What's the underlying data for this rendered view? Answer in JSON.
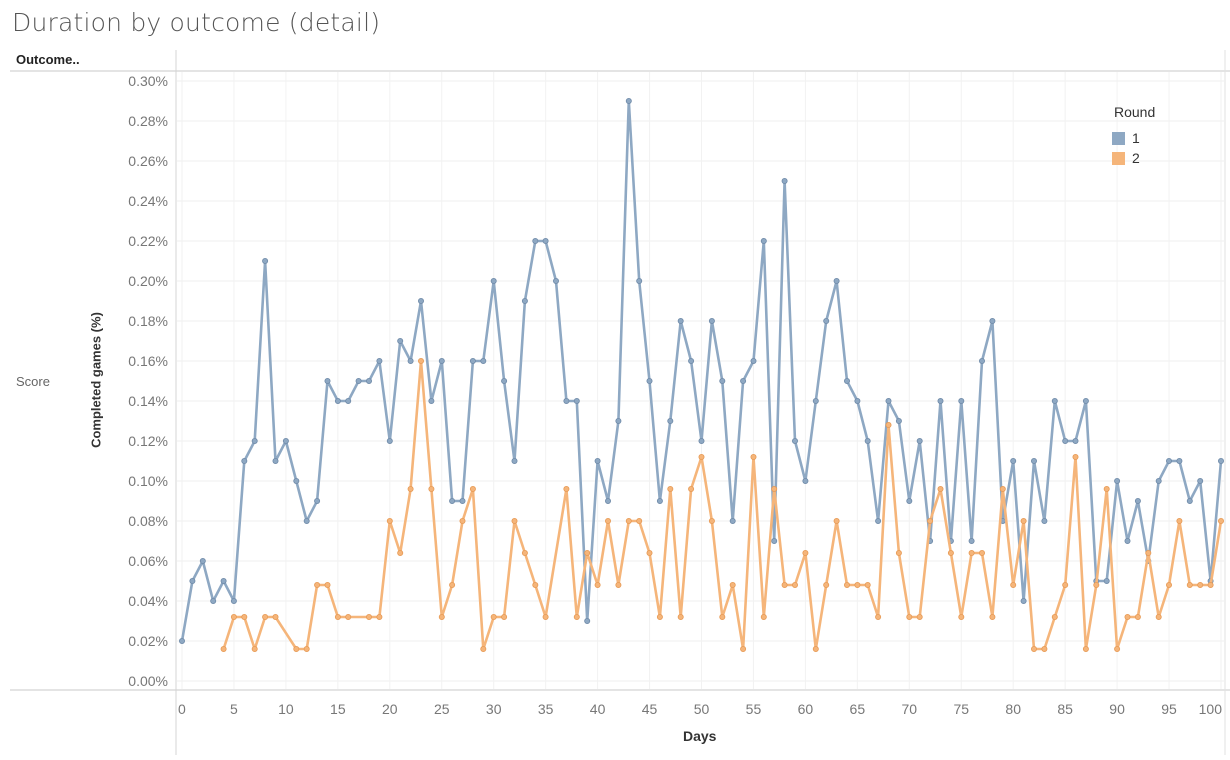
{
  "page": {
    "title": "Duration by outcome (detail)",
    "row_header": "Outcome..",
    "row_label": "Score"
  },
  "legend": {
    "title": "Round",
    "items": [
      {
        "label": "1",
        "color": "#8ea8c3"
      },
      {
        "label": "2",
        "color": "#f5b57a"
      }
    ]
  },
  "chart_data": {
    "type": "line",
    "title": "Duration by outcome (detail)",
    "xlabel": "Days",
    "ylabel": "Completed games (%)",
    "xlim": [
      0,
      100
    ],
    "ylim": [
      0,
      0.3
    ],
    "x_ticks": [
      0,
      5,
      10,
      15,
      20,
      25,
      30,
      35,
      40,
      45,
      50,
      55,
      60,
      65,
      70,
      75,
      80,
      85,
      90,
      95,
      100
    ],
    "y_ticks": [
      "0.00%",
      "0.02%",
      "0.04%",
      "0.06%",
      "0.08%",
      "0.10%",
      "0.12%",
      "0.14%",
      "0.16%",
      "0.18%",
      "0.20%",
      "0.22%",
      "0.24%",
      "0.26%",
      "0.28%",
      "0.30%"
    ],
    "grid": true,
    "legend_position": "top-right",
    "series": [
      {
        "name": "1",
        "color": "#8ea8c3",
        "x": [
          0,
          1,
          2,
          3,
          4,
          5,
          6,
          7,
          8,
          9,
          10,
          11,
          12,
          13,
          14,
          15,
          16,
          17,
          18,
          19,
          20,
          21,
          22,
          23,
          24,
          25,
          26,
          27,
          28,
          29,
          30,
          31,
          32,
          33,
          34,
          35,
          36,
          37,
          38,
          39,
          40,
          41,
          42,
          43,
          44,
          45,
          46,
          47,
          48,
          49,
          50,
          51,
          52,
          53,
          54,
          55,
          56,
          57,
          58,
          59,
          60,
          61,
          62,
          63,
          64,
          65,
          66,
          67,
          68,
          69,
          70,
          71,
          72,
          73,
          74,
          75,
          76,
          77,
          78,
          79,
          80,
          81,
          82,
          83,
          84,
          85,
          86,
          87,
          88,
          89,
          90,
          91,
          92,
          93,
          94,
          95,
          96,
          97,
          98,
          99,
          100
        ],
        "values": [
          0.02,
          0.05,
          0.06,
          0.04,
          0.05,
          0.04,
          0.11,
          0.12,
          0.21,
          0.11,
          0.12,
          0.1,
          0.08,
          0.09,
          0.15,
          0.14,
          0.14,
          0.15,
          0.15,
          0.16,
          0.12,
          0.17,
          0.16,
          0.19,
          0.14,
          0.16,
          0.09,
          0.09,
          0.16,
          0.16,
          0.2,
          0.15,
          0.11,
          0.19,
          0.22,
          0.22,
          0.2,
          0.14,
          0.14,
          0.03,
          0.11,
          0.09,
          0.13,
          0.29,
          0.2,
          0.15,
          0.09,
          0.13,
          0.18,
          0.16,
          0.12,
          0.18,
          0.15,
          0.08,
          0.15,
          0.16,
          0.22,
          0.07,
          0.25,
          0.12,
          0.1,
          0.14,
          0.18,
          0.2,
          0.15,
          0.14,
          0.12,
          0.08,
          0.14,
          0.13,
          0.09,
          0.12,
          0.07,
          0.14,
          0.07,
          0.14,
          0.07,
          0.16,
          0.18,
          0.08,
          0.11,
          0.04,
          0.11,
          0.08,
          0.14,
          0.12,
          0.12,
          0.14,
          0.05,
          0.05,
          0.1,
          0.07,
          0.09,
          0.06,
          0.1,
          0.11,
          0.11,
          0.09,
          0.1,
          0.05,
          0.11
        ]
      },
      {
        "name": "2",
        "color": "#f5b57a",
        "x": [
          4,
          5,
          6,
          7,
          8,
          9,
          11,
          12,
          13,
          14,
          15,
          16,
          18,
          19,
          20,
          21,
          22,
          23,
          24,
          25,
          26,
          27,
          28,
          29,
          30,
          31,
          32,
          33,
          34,
          35,
          37,
          38,
          39,
          40,
          41,
          42,
          43,
          44,
          45,
          46,
          47,
          48,
          49,
          50,
          51,
          52,
          53,
          54,
          55,
          56,
          57,
          58,
          59,
          60,
          61,
          62,
          63,
          64,
          65,
          66,
          67,
          68,
          69,
          70,
          71,
          72,
          73,
          74,
          75,
          76,
          77,
          78,
          79,
          80,
          81,
          82,
          83,
          84,
          85,
          86,
          87,
          88,
          89,
          90,
          91,
          92,
          93,
          94,
          95,
          96,
          97,
          98,
          99,
          100
        ],
        "values": [
          0.016,
          0.032,
          0.032,
          0.016,
          0.032,
          0.032,
          0.016,
          0.016,
          0.048,
          0.048,
          0.032,
          0.032,
          0.032,
          0.032,
          0.08,
          0.064,
          0.096,
          0.16,
          0.096,
          0.032,
          0.048,
          0.08,
          0.096,
          0.016,
          0.032,
          0.032,
          0.08,
          0.064,
          0.048,
          0.032,
          0.096,
          0.032,
          0.064,
          0.048,
          0.08,
          0.048,
          0.08,
          0.08,
          0.064,
          0.032,
          0.096,
          0.032,
          0.096,
          0.112,
          0.08,
          0.032,
          0.048,
          0.016,
          0.112,
          0.032,
          0.096,
          0.048,
          0.048,
          0.064,
          0.016,
          0.048,
          0.08,
          0.048,
          0.048,
          0.048,
          0.032,
          0.128,
          0.064,
          0.032,
          0.032,
          0.08,
          0.096,
          0.064,
          0.032,
          0.064,
          0.064,
          0.032,
          0.096,
          0.048,
          0.08,
          0.016,
          0.016,
          0.032,
          0.048,
          0.112,
          0.016,
          0.048,
          0.096,
          0.016,
          0.032,
          0.032,
          0.064,
          0.032,
          0.048,
          0.08,
          0.048,
          0.048,
          0.048,
          0.08
        ]
      }
    ]
  }
}
